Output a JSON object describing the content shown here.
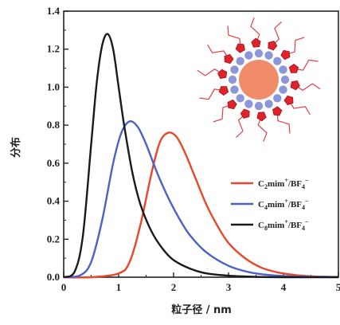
{
  "chart_data": {
    "type": "line",
    "title": "",
    "xlabel": "粒子径 / nm",
    "ylabel": "分布",
    "xlim": [
      0,
      5
    ],
    "ylim": [
      0,
      1.4
    ],
    "x_ticks": [
      "0",
      "1",
      "2",
      "3",
      "4",
      "5"
    ],
    "y_ticks": [
      "0.0",
      "0.2",
      "0.4",
      "0.6",
      "0.8",
      "1.0",
      "1.2",
      "1.4"
    ],
    "grid": false,
    "legend_position": "right",
    "series": [
      {
        "name_base": "C",
        "name_sub": "2",
        "name_rest": "mim",
        "name_sup1": "+",
        "name_mid": "/BF",
        "name_sub2": "4",
        "name_sup2": "−",
        "color": "#e8472a",
        "x": [
          0.0,
          0.5,
          1.0,
          1.2,
          1.4,
          1.6,
          1.75,
          1.9,
          2.05,
          2.2,
          2.4,
          2.6,
          2.8,
          3.0,
          3.3,
          3.6,
          3.9,
          4.2,
          4.5,
          4.8,
          5.0
        ],
        "y": [
          0.0,
          0.0,
          0.02,
          0.08,
          0.28,
          0.55,
          0.71,
          0.76,
          0.74,
          0.66,
          0.52,
          0.38,
          0.27,
          0.18,
          0.1,
          0.05,
          0.025,
          0.012,
          0.005,
          0.002,
          0.001
        ]
      },
      {
        "name_base": "C",
        "name_sub": "4",
        "name_rest": "mim",
        "name_sup1": "+",
        "name_mid": "/BF",
        "name_sub2": "4",
        "name_sup2": "−",
        "color": "#4b62c4",
        "x": [
          0.0,
          0.3,
          0.5,
          0.7,
          0.9,
          1.05,
          1.2,
          1.35,
          1.5,
          1.7,
          1.9,
          2.1,
          2.3,
          2.6,
          3.0,
          3.4,
          3.8,
          4.2,
          4.6,
          5.0
        ],
        "y": [
          0.0,
          0.01,
          0.08,
          0.3,
          0.6,
          0.76,
          0.82,
          0.79,
          0.7,
          0.55,
          0.42,
          0.31,
          0.22,
          0.13,
          0.06,
          0.025,
          0.01,
          0.004,
          0.002,
          0.001
        ]
      },
      {
        "name_base": "C",
        "name_sub": "8",
        "name_rest": "mim",
        "name_sup1": "+",
        "name_mid": "/BF",
        "name_sub2": "4",
        "name_sup2": "−",
        "color": "#1a1a1a",
        "x": [
          0.0,
          0.2,
          0.35,
          0.5,
          0.6,
          0.7,
          0.8,
          0.9,
          1.0,
          1.1,
          1.25,
          1.4,
          1.6,
          1.8,
          2.0,
          2.3,
          2.6,
          3.0,
          3.5,
          4.0,
          5.0
        ],
        "y": [
          0.0,
          0.03,
          0.22,
          0.7,
          1.02,
          1.22,
          1.28,
          1.2,
          1.0,
          0.8,
          0.55,
          0.38,
          0.24,
          0.15,
          0.09,
          0.045,
          0.02,
          0.008,
          0.002,
          0.0,
          0.0
        ]
      }
    ]
  },
  "inset": {
    "core_color": "#f08c6a",
    "anion_color": "#8d96d8",
    "cation_color": "#e0232b",
    "chain_color": "#e0404a"
  }
}
